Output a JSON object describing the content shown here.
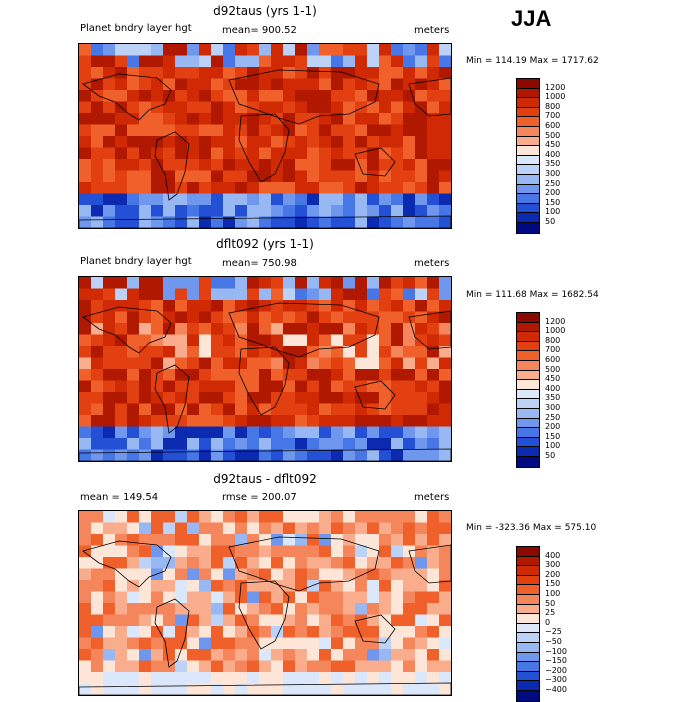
{
  "season": "JJA",
  "panels": [
    {
      "title": "d92taus (yrs 1-1)",
      "left": "Planet bndry layer hgt",
      "mid": "mean= 900.52",
      "units": "meters",
      "minmax": "Min = 114.19 Max = 1717.62",
      "levels": [
        "1200",
        "1000",
        "800",
        "700",
        "600",
        "500",
        "450",
        "400",
        "350",
        "300",
        "250",
        "200",
        "150",
        "100",
        "50"
      ],
      "colors": [
        "#8b0a00",
        "#b01800",
        "#d02a05",
        "#e24010",
        "#f0602a",
        "#f5855a",
        "#f9ad8d",
        "#fde6d8",
        "#dbe8fb",
        "#bcd3f7",
        "#97b8f2",
        "#6f97ed",
        "#4776e6",
        "#2450d6",
        "#0c2ab0",
        "#000a80"
      ],
      "map_kind": "abs1"
    },
    {
      "title": "dflt092 (yrs 1-1)",
      "left": "Planet bndry layer hgt",
      "mid": "mean= 750.98",
      "units": "meters",
      "minmax": "Min = 111.68 Max = 1682.54",
      "levels": [
        "1200",
        "1000",
        "800",
        "700",
        "600",
        "500",
        "450",
        "400",
        "350",
        "300",
        "250",
        "200",
        "150",
        "100",
        "50"
      ],
      "colors": [
        "#8b0a00",
        "#b01800",
        "#d02a05",
        "#e24010",
        "#f0602a",
        "#f5855a",
        "#f9ad8d",
        "#fde6d8",
        "#dbe8fb",
        "#bcd3f7",
        "#97b8f2",
        "#6f97ed",
        "#4776e6",
        "#2450d6",
        "#0c2ab0",
        "#000a80"
      ],
      "map_kind": "abs2"
    },
    {
      "title": "d92taus - dflt092",
      "left": "mean = 149.54",
      "mid": "rmse = 200.07",
      "units": "meters",
      "minmax": "Min = -323.36 Max = 575.10",
      "levels": [
        "400",
        "300",
        "200",
        "150",
        "100",
        "50",
        "25",
        "0",
        "−25",
        "−50",
        "−100",
        "−150",
        "−200",
        "−300",
        "−400"
      ],
      "colors": [
        "#8b0a00",
        "#b01800",
        "#d02a05",
        "#e24010",
        "#f0602a",
        "#f5855a",
        "#f9ad8d",
        "#fde6d8",
        "#dbe8fb",
        "#bcd3f7",
        "#97b8f2",
        "#6f97ed",
        "#4776e6",
        "#2450d6",
        "#0c2ab0",
        "#000a80"
      ],
      "map_kind": "diff"
    }
  ]
}
